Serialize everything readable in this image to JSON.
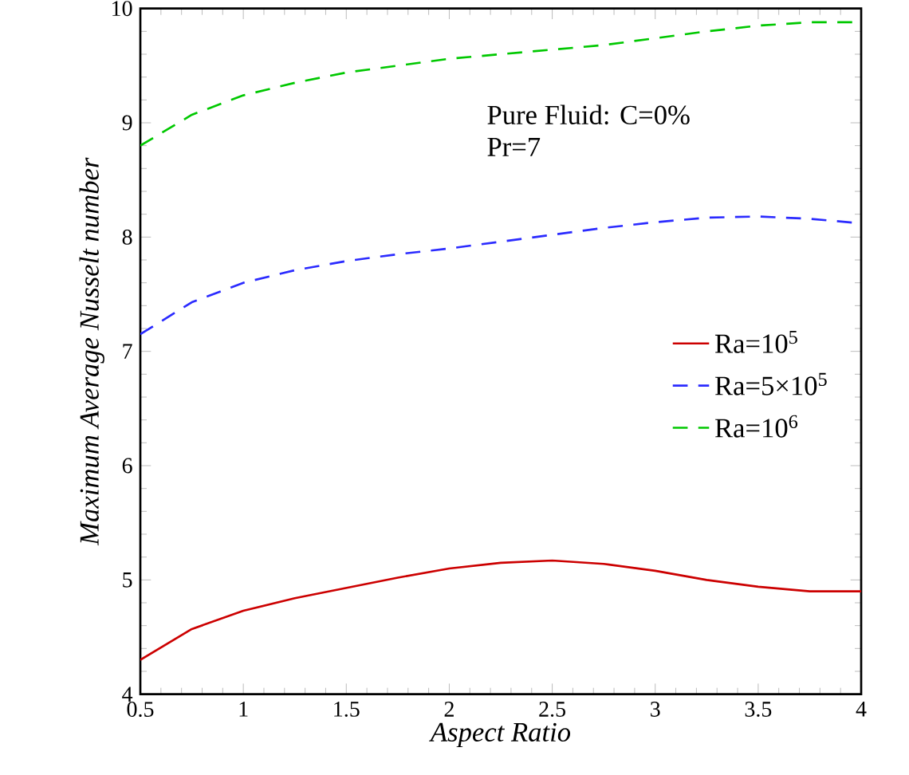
{
  "chart_data": {
    "type": "line",
    "xlabel": "Aspect Ratio",
    "ylabel": "Maximum Average Nusselt number",
    "x": [
      0.5,
      0.75,
      1,
      1.25,
      1.5,
      1.75,
      2,
      2.25,
      2.5,
      2.75,
      3,
      3.25,
      3.5,
      3.75,
      4
    ],
    "series": [
      {
        "name": "Ra=10$^{5}$",
        "color": "#cc0000",
        "line_style": "solid",
        "values": [
          4.3,
          4.57,
          4.73,
          4.84,
          4.93,
          5.02,
          5.1,
          5.15,
          5.17,
          5.14,
          5.08,
          5.0,
          4.94,
          4.9,
          4.9
        ]
      },
      {
        "name": "Ra=5×10$^{5}$",
        "color": "#2b2bff",
        "line_style": "dashed",
        "values": [
          7.15,
          7.43,
          7.6,
          7.71,
          7.79,
          7.85,
          7.9,
          7.96,
          8.02,
          8.08,
          8.13,
          8.17,
          8.18,
          8.16,
          8.12
        ]
      },
      {
        "name": "Ra=10$^{6}$",
        "color": "#00c800",
        "line_style": "dashed",
        "values": [
          8.8,
          9.07,
          9.24,
          9.35,
          9.44,
          9.5,
          9.56,
          9.6,
          9.64,
          9.68,
          9.74,
          9.8,
          9.85,
          9.88,
          9.88
        ]
      }
    ],
    "xlim": [
      0.5,
      4
    ],
    "xticks": [
      0.5,
      1,
      1.5,
      2,
      2.5,
      3,
      3.5,
      4
    ],
    "ylim": [
      4,
      10
    ],
    "yticks": [
      4,
      5,
      6,
      7,
      8,
      9,
      10
    ],
    "annotations": [
      "Pure Fluid: C=0%",
      "Pr=7"
    ],
    "legend": "right",
    "grid": false,
    "marker": "none"
  }
}
